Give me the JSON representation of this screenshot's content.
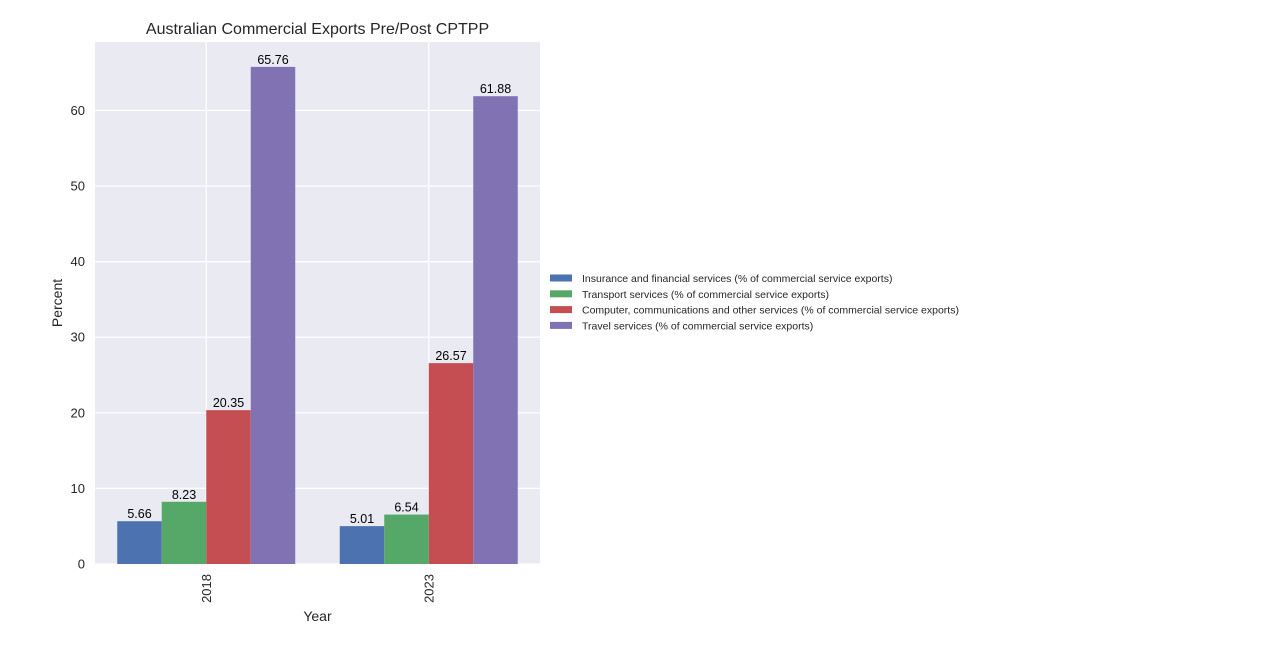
{
  "chart_data": {
    "type": "bar",
    "title": "Australian Commercial Exports Pre/Post CPTPP",
    "xlabel": "Year",
    "ylabel": "Percent",
    "categories": [
      "2018",
      "2023"
    ],
    "ylim": [
      0,
      69.05
    ],
    "yticks": [
      0,
      10,
      20,
      30,
      40,
      50,
      60
    ],
    "grid": true,
    "legend_position": "center-right",
    "series": [
      {
        "name": "Insurance and financial services (% of commercial service exports)",
        "values": [
          5.66,
          5.01
        ],
        "labels": [
          "5.66",
          "5.01"
        ],
        "color": "#4c72b0"
      },
      {
        "name": "Transport services (% of commercial service exports)",
        "values": [
          8.23,
          6.54
        ],
        "labels": [
          "8.23",
          "6.54"
        ],
        "color": "#55a868"
      },
      {
        "name": "Computer, communications and other services (% of commercial service exports)",
        "values": [
          20.35,
          26.57
        ],
        "labels": [
          "20.35",
          "26.57"
        ],
        "color": "#c44e52"
      },
      {
        "name": "Travel services (% of commercial service exports)",
        "values": [
          65.76,
          61.88
        ],
        "labels": [
          "65.76",
          "61.88"
        ],
        "color": "#8172b3"
      }
    ],
    "colors": {
      "plot_background": "#eaeaf2",
      "grid": "#ffffff",
      "text": "#262626"
    }
  }
}
